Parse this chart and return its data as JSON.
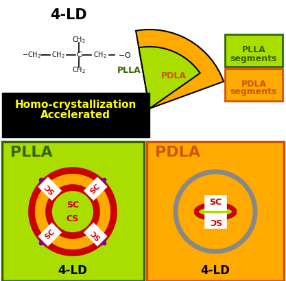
{
  "title_4ld": "4-LD",
  "plla_label": "PLLA",
  "pdla_label": "PDLA",
  "plla_seg1": "PLLA",
  "plla_seg2": "segments",
  "pdla_seg1": "PDLA",
  "pdla_seg2": "segments",
  "accel1": "Accelerated",
  "accel2": "Homo-crystallization",
  "sc_label": "SC",
  "cs_label": "CS",
  "ld_label": "4-LD",
  "bg_color": "#ffffff",
  "lime_green": "#aadd00",
  "orange_color": "#ffaa00",
  "dark_green": "#336600",
  "dark_orange": "#cc5500",
  "red_color": "#cc0000",
  "gray_color": "#888888",
  "purple_color": "#880088",
  "yellow_color": "#ffff00",
  "fig_w": 4.17,
  "fig_h": 4.09,
  "dpi": 100
}
